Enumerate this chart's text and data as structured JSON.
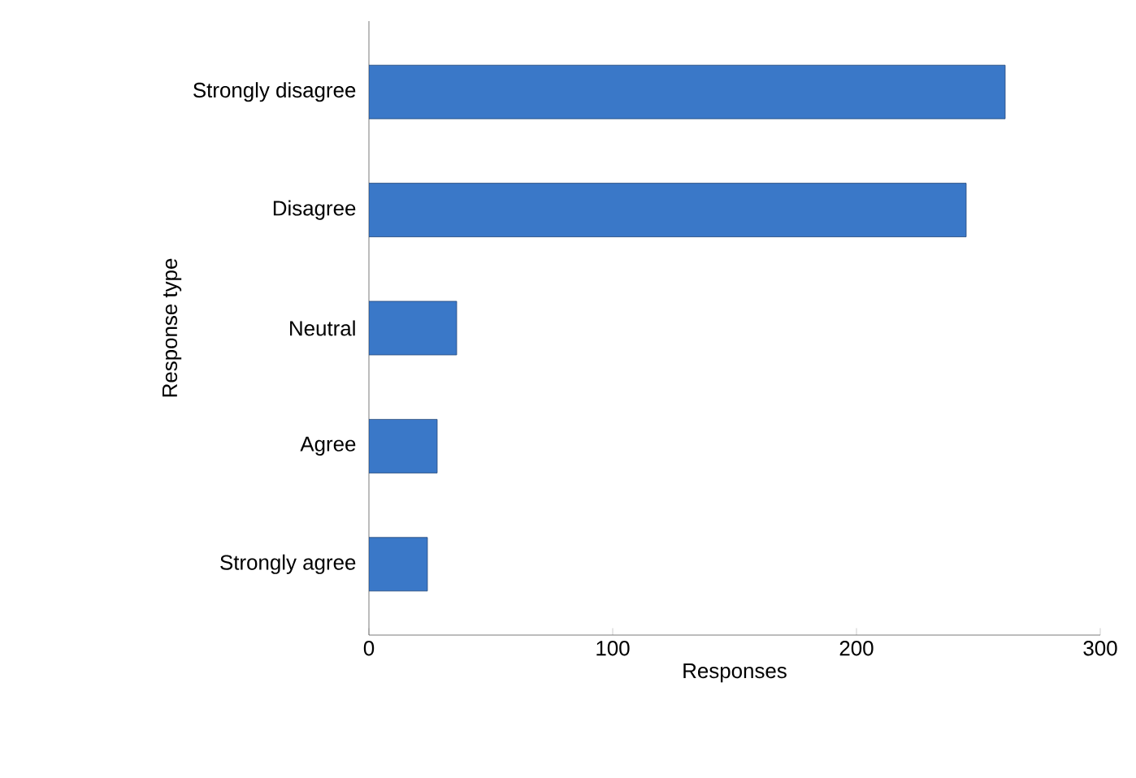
{
  "chart_data": {
    "type": "bar",
    "orientation": "horizontal",
    "xlabel": "Responses",
    "ylabel": "Response type",
    "categories": [
      "Strongly disagree",
      "Disagree",
      "Neutral",
      "Agree",
      "Strongly agree"
    ],
    "values": [
      261,
      245,
      36,
      28,
      24
    ],
    "color": "#3a78c8",
    "xlim": [
      0,
      300
    ],
    "xticks": [
      0,
      100,
      200,
      300
    ],
    "grid": false
  }
}
